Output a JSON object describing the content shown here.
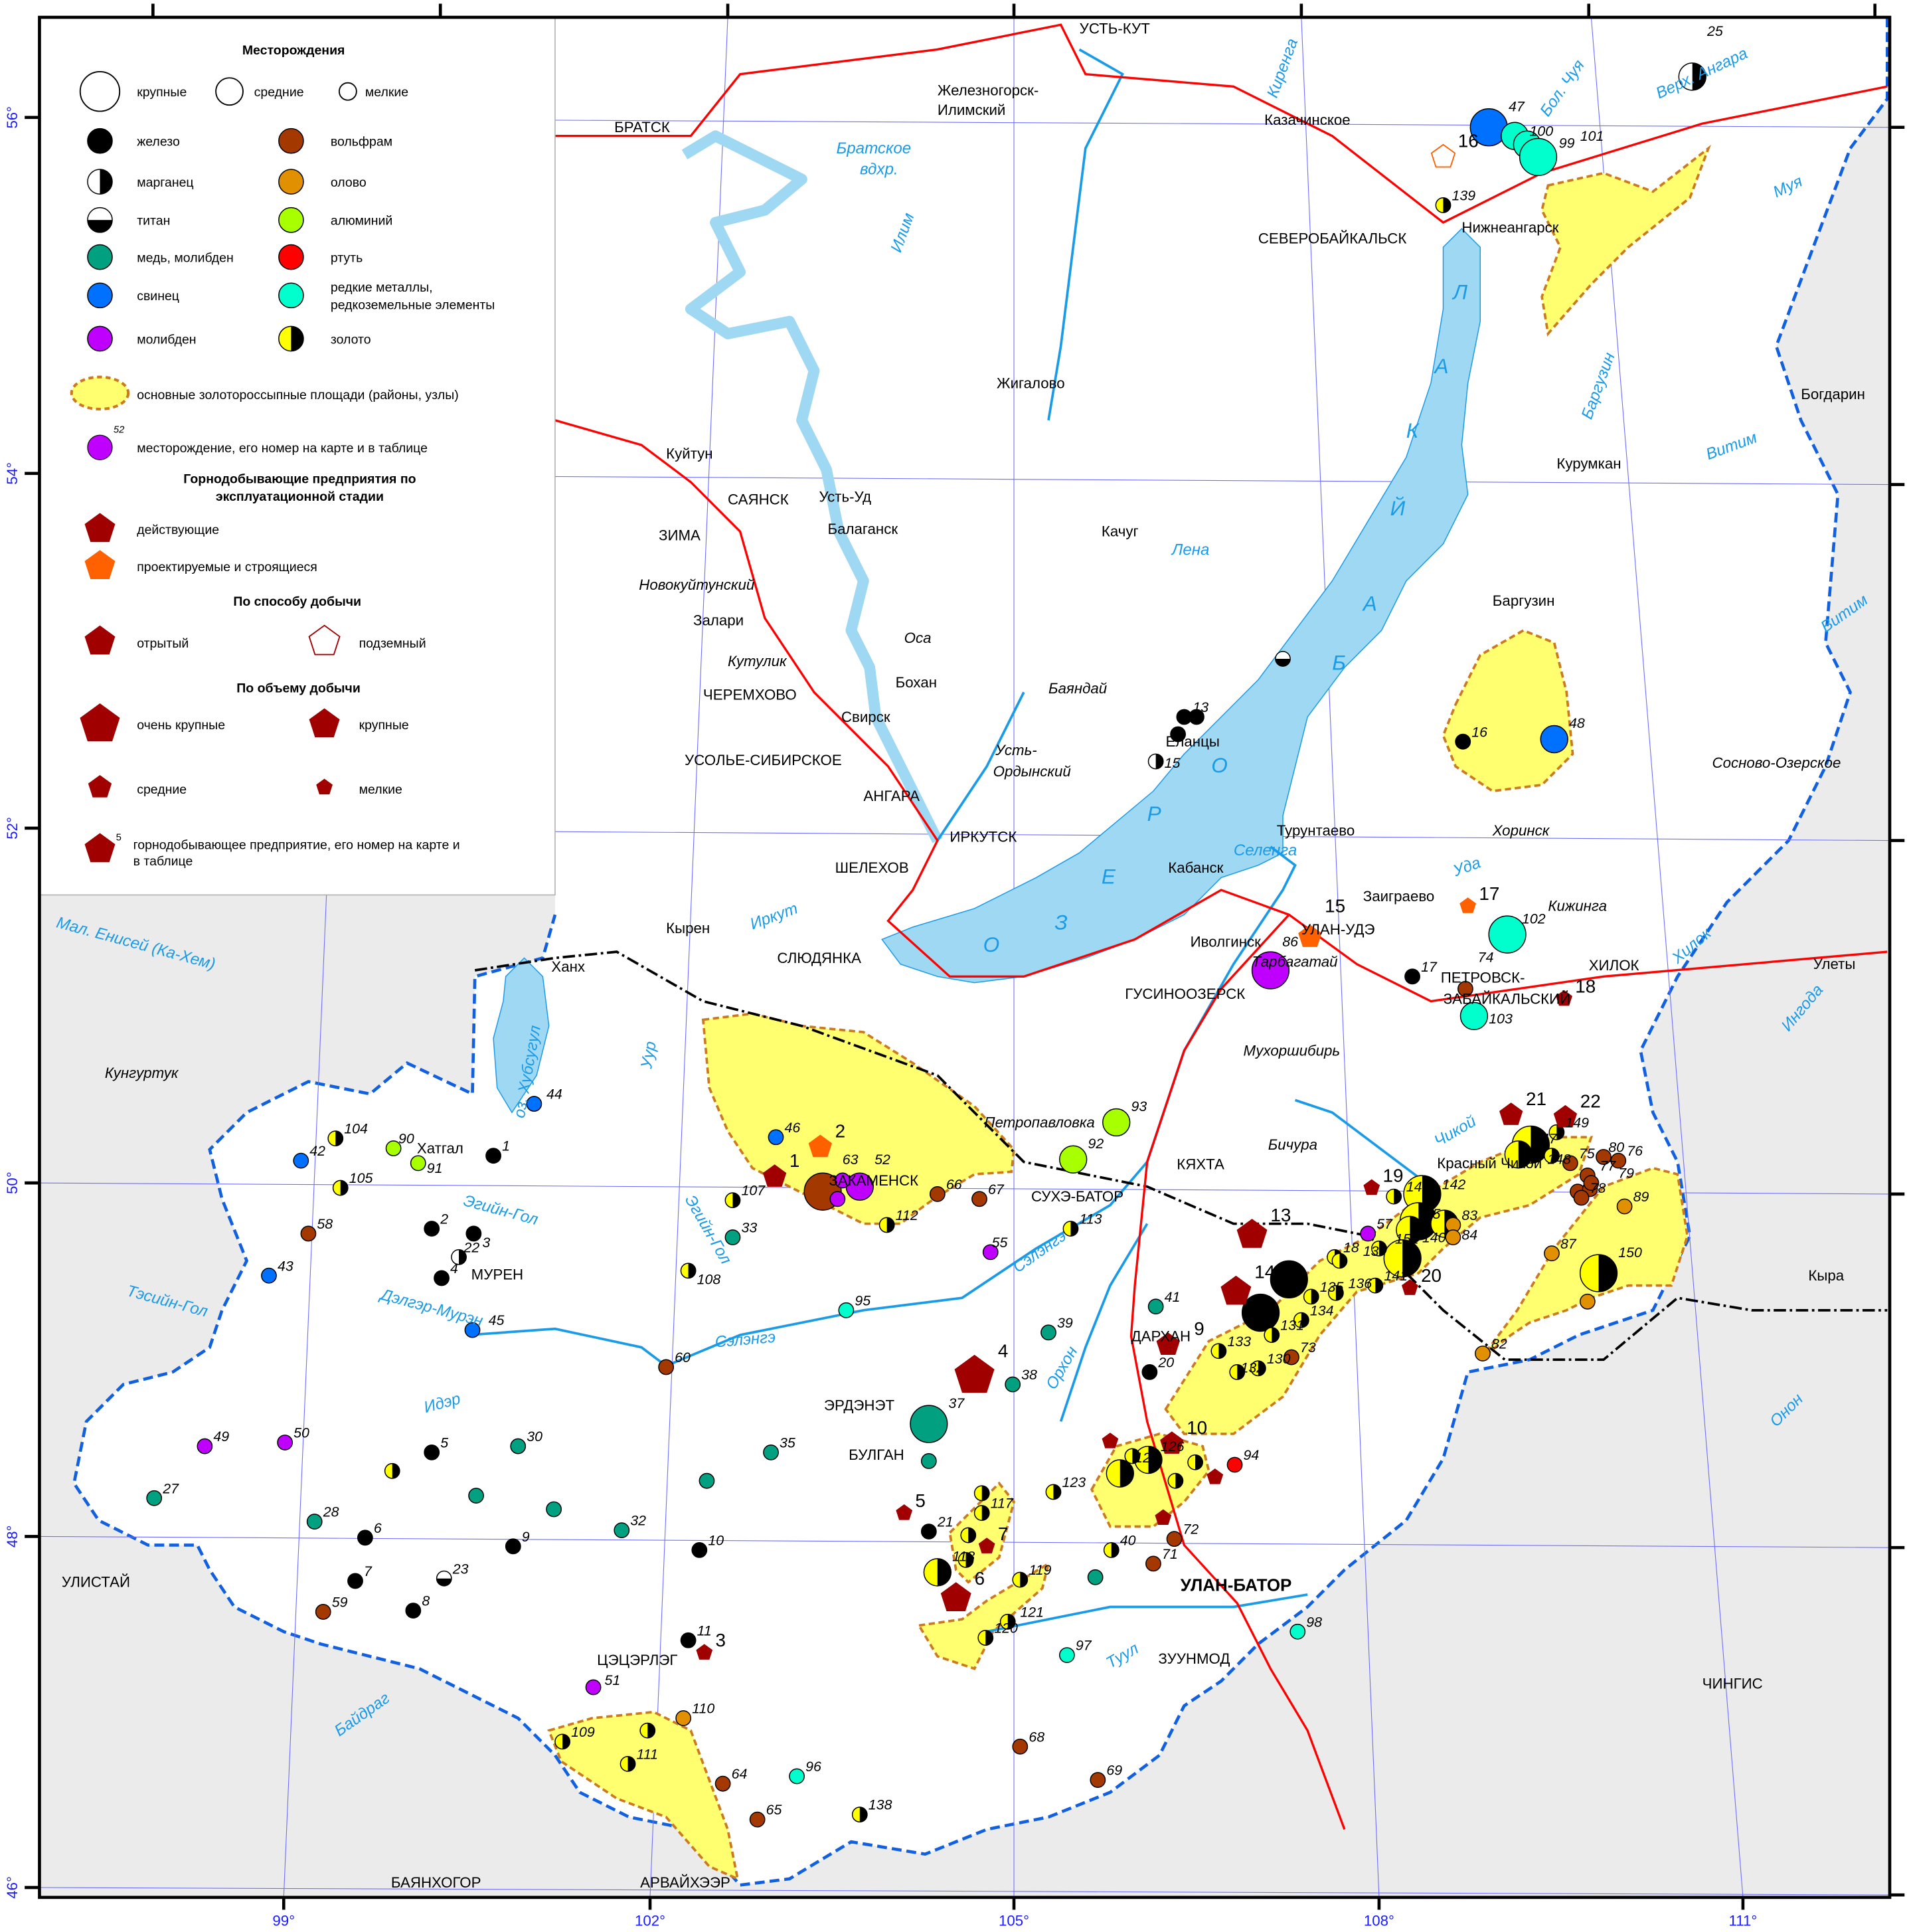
{
  "legend": {
    "deposits_title": "Месторождения",
    "sizes": [
      "крупные",
      "средние",
      "мелкие"
    ],
    "types": [
      {
        "key": "fe",
        "label": "железо",
        "color": "#000000"
      },
      {
        "key": "mn",
        "label": "марганец",
        "color": "#000000"
      },
      {
        "key": "ti",
        "label": "титан",
        "color": "#000000"
      },
      {
        "key": "cu",
        "label": "медь, молибден",
        "color": "#00a080"
      },
      {
        "key": "pb",
        "label": "свинец",
        "color": "#0070ff"
      },
      {
        "key": "mo",
        "label": "молибден",
        "color": "#c000ff"
      },
      {
        "key": "w",
        "label": "вольфрам",
        "color": "#a33800"
      },
      {
        "key": "sn",
        "label": "олово",
        "color": "#e09000"
      },
      {
        "key": "al",
        "label": "алюминий",
        "color": "#a8ff00"
      },
      {
        "key": "hg",
        "label": "ртуть",
        "color": "#ff0000"
      },
      {
        "key": "rm",
        "label": "редкие металлы,",
        "label2": "редкоземельные элементы",
        "color": "#00ffcc"
      },
      {
        "key": "au",
        "label": "золото",
        "color": "#ffff00"
      }
    ],
    "gold_area": "основные золотороссыпные площади (районы, узлы)",
    "deposit_number_example": "52",
    "deposit_number_label": "месторождение, его номер на карте и в таблице",
    "stage_title_1": "Горнодобывающие предприятия по",
    "stage_title_2": "эксплуатационной стадии",
    "active": "действующие",
    "planned": "проектируемые и строящиеся",
    "method_title": "По способу добычи",
    "open": "отрытый",
    "underground": "подземный",
    "volume_title": "По объему добычи",
    "very_large": "очень крупные",
    "large": "крупные",
    "medium": "средние",
    "small": "мелкие",
    "enterprise_number_example": "5",
    "enterprise_number_label_1": "горнодобывающее предприятие, его номер на карте и",
    "enterprise_number_label_2": "в таблице"
  },
  "colors": {
    "enterprise_active": "#a00000",
    "enterprise_planned": "#ff6000",
    "gold_area_fill": "#ffff70",
    "gold_area_border": "#cc7a20",
    "lake": "#9fd8f2",
    "river": "#1a9be8",
    "railway": "#ff0000",
    "study_boundary": "#1060e0",
    "outside": "#ebebeb"
  },
  "axes": {
    "lat_labels": [
      "56°",
      "54°",
      "52°",
      "50°",
      "48°",
      "46°"
    ],
    "lon_labels": [
      "99°",
      "102°",
      "105°",
      "108°",
      "111°"
    ]
  },
  "lake_letters": [
    "О",
    "З",
    "Е",
    "Р",
    "О",
    "Б",
    "А",
    "Й",
    "К",
    "А",
    "Л"
  ],
  "places": [
    {
      "name": "УСТЬ-КУТ",
      "style": "pl"
    },
    {
      "name": "Железногорск-",
      "style": "pl"
    },
    {
      "name": "Илимский",
      "style": "pl"
    },
    {
      "name": "БРАТСК",
      "style": "pl"
    },
    {
      "name": "Казачинское",
      "style": "pl"
    },
    {
      "name": "СЕВЕРОБАЙКАЛЬСК",
      "style": "pl"
    },
    {
      "name": "Нижнеангарск",
      "style": "pl"
    },
    {
      "name": "Жигалово",
      "style": "pl"
    },
    {
      "name": "Богдарин",
      "style": "pl"
    },
    {
      "name": "Куйтун",
      "style": "pl"
    },
    {
      "name": "Курумкан",
      "style": "pl"
    },
    {
      "name": "САЯНСК",
      "style": "pl"
    },
    {
      "name": "Усть-Уд",
      "style": "pl"
    },
    {
      "name": "Балаганск",
      "style": "pl"
    },
    {
      "name": "ЗИМА",
      "style": "pl"
    },
    {
      "name": "Качуг",
      "style": "pl"
    },
    {
      "name": "Новокуйтунский",
      "style": "pli"
    },
    {
      "name": "Баргузин",
      "style": "pl"
    },
    {
      "name": "Залари",
      "style": "pl"
    },
    {
      "name": "Оса",
      "style": "pli"
    },
    {
      "name": "Кутулик",
      "style": "pli"
    },
    {
      "name": "Бохан",
      "style": "pl"
    },
    {
      "name": "ЧЕРЕМХОВО",
      "style": "pl"
    },
    {
      "name": "Баяндай",
      "style": "pli"
    },
    {
      "name": "Свирск",
      "style": "pl"
    },
    {
      "name": "Еланцы",
      "style": "pl"
    },
    {
      "name": "Усть-",
      "style": "pli"
    },
    {
      "name": "Ордынский",
      "style": "pli"
    },
    {
      "name": "УСОЛЬЕ-СИБИРСКОЕ",
      "style": "pl"
    },
    {
      "name": "Сосново-Озерское",
      "style": "pli"
    },
    {
      "name": "АНГАРА",
      "style": "pl"
    },
    {
      "name": "Турунтаево",
      "style": "pl"
    },
    {
      "name": "Хоринск",
      "style": "pli"
    },
    {
      "name": "ИРКУТСК",
      "style": "pl"
    },
    {
      "name": "Кабанск",
      "style": "pl"
    },
    {
      "name": "ШЕЛЕХОВ",
      "style": "pl"
    },
    {
      "name": "Заиграево",
      "style": "pl"
    },
    {
      "name": "Кижинга",
      "style": "pli"
    },
    {
      "name": "УЛАН-УДЭ",
      "style": "pl"
    },
    {
      "name": "Кырен",
      "style": "pl"
    },
    {
      "name": "СЛЮДЯНКА",
      "style": "pl"
    },
    {
      "name": "Иволгинск",
      "style": "pl"
    },
    {
      "name": "Тарбагатай",
      "style": "pli"
    },
    {
      "name": "ХИЛОК",
      "style": "pl"
    },
    {
      "name": "Улеты",
      "style": "pl"
    },
    {
      "name": "Ханх",
      "style": "pl"
    },
    {
      "name": "ПЕТРОВСК-",
      "style": "pl"
    },
    {
      "name": "ЗАБАЙКАЛЬСКИЙ",
      "style": "pl"
    },
    {
      "name": "ГУСИНООЗЕРСК",
      "style": "pl"
    },
    {
      "name": "Мухоршибирь",
      "style": "pli"
    },
    {
      "name": "Кунгуртук",
      "style": "pli"
    },
    {
      "name": "Бичура",
      "style": "pli"
    },
    {
      "name": "Петропавловка",
      "style": "pli"
    },
    {
      "name": "КЯХТА",
      "style": "pl"
    },
    {
      "name": "Красный Чикой",
      "style": "pl"
    },
    {
      "name": "СУХЭ-БАТОР",
      "style": "pl"
    },
    {
      "name": "ЗАКАМЕНСК",
      "style": "pl"
    },
    {
      "name": "Хатгал",
      "style": "pl"
    },
    {
      "name": "МУРЕН",
      "style": "pl"
    },
    {
      "name": "ДАРХАН",
      "style": "pl"
    },
    {
      "name": "Кыра",
      "style": "pl"
    },
    {
      "name": "ЭРДЭНЭТ",
      "style": "pl"
    },
    {
      "name": "БУЛГАН",
      "style": "pl"
    },
    {
      "name": "УЛИСТАЙ",
      "style": "pl"
    },
    {
      "name": "УЛАН-БАТОР",
      "style": "plb"
    },
    {
      "name": "ЗУУНМОД",
      "style": "pl"
    },
    {
      "name": "ЦЭЦЭРЛЭГ",
      "style": "pl"
    },
    {
      "name": "ЧИНГИС",
      "style": "pl"
    },
    {
      "name": "БАЯНХОГОР",
      "style": "pl"
    },
    {
      "name": "АРВАЙХЭЭР",
      "style": "pl"
    }
  ],
  "rivers": [
    "Братское",
    "вдхр.",
    "Илим",
    "Киренга",
    "Бол. Чуя",
    "Верх. Ангара",
    "Муя",
    "Баргузин",
    "Витим",
    "Лена",
    "Витим",
    "Селенга",
    "Уда",
    "Иркут",
    "Хилок",
    "Ингода",
    "Мал. Енисей (Ка-Хем)",
    "оз. Хубсугул",
    "Уур",
    "Чикой",
    "Эгийн-Гол",
    "Эгийн-Гол",
    "Тэсийн-Гол",
    "Дэлгэр-Мурэн",
    "Сэлэнгэ",
    "Сэлэнгэ",
    "Идэр",
    "Орхон",
    "Туул",
    "Байдраг",
    "Онон"
  ],
  "deposits": [
    {
      "n": "25",
      "type": "mn",
      "size": "m"
    },
    {
      "n": "47",
      "type": "pb",
      "size": "l"
    },
    {
      "n": "100",
      "type": "rm",
      "size": "m"
    },
    {
      "n": "99",
      "type": "rm",
      "size": "m"
    },
    {
      "n": "101",
      "type": "rm",
      "size": "l"
    },
    {
      "n": "139",
      "type": "au",
      "size": "s"
    },
    {
      "n": "",
      "type": "ti",
      "size": "s"
    },
    {
      "n": "13",
      "type": "fe",
      "size": "s"
    },
    {
      "n": "",
      "type": "fe",
      "size": "s"
    },
    {
      "n": "",
      "type": "fe",
      "size": "s"
    },
    {
      "n": "15",
      "type": "mn",
      "size": "s"
    },
    {
      "n": "16",
      "type": "fe",
      "size": "s"
    },
    {
      "n": "48",
      "type": "pb",
      "size": "m"
    },
    {
      "n": "102",
      "type": "rm",
      "size": "l"
    },
    {
      "n": "86",
      "type": "mo",
      "size": "l"
    },
    {
      "n": "17",
      "type": "fe",
      "size": "s"
    },
    {
      "n": "74",
      "type": "w",
      "size": "s"
    },
    {
      "n": "103",
      "type": "rm",
      "size": "m"
    },
    {
      "n": "93",
      "type": "al",
      "size": "m"
    },
    {
      "n": "92",
      "type": "al",
      "size": "m"
    },
    {
      "n": "46",
      "type": "pb",
      "size": "s"
    },
    {
      "n": "63",
      "type": "w",
      "size": "l"
    },
    {
      "n": "52",
      "type": "mo",
      "size": "m"
    },
    {
      "n": "",
      "type": "mo",
      "size": "s"
    },
    {
      "n": "",
      "type": "mo",
      "size": "s"
    },
    {
      "n": "112",
      "type": "au",
      "size": "s"
    },
    {
      "n": "66",
      "type": "w",
      "size": "s"
    },
    {
      "n": "67",
      "type": "w",
      "size": "s"
    },
    {
      "n": "107",
      "type": "au",
      "size": "s"
    },
    {
      "n": "33",
      "type": "cu",
      "size": "s"
    },
    {
      "n": "108",
      "type": "au",
      "size": "s"
    },
    {
      "n": "113",
      "type": "au",
      "size": "s"
    },
    {
      "n": "55",
      "type": "mo",
      "size": "s"
    },
    {
      "n": "95",
      "type": "rm",
      "size": "s"
    },
    {
      "n": "41",
      "type": "cu",
      "size": "s"
    },
    {
      "n": "39",
      "type": "cu",
      "size": "s"
    },
    {
      "n": "38",
      "type": "cu",
      "size": "s"
    },
    {
      "n": "20",
      "type": "fe",
      "size": "s"
    },
    {
      "n": "37",
      "type": "cu",
      "size": "l"
    },
    {
      "n": "",
      "type": "cu",
      "size": "s"
    },
    {
      "n": "44",
      "type": "pb",
      "size": "s"
    },
    {
      "n": "42",
      "type": "pb",
      "size": "s"
    },
    {
      "n": "104",
      "type": "au",
      "size": "s"
    },
    {
      "n": "90",
      "type": "al",
      "size": "s"
    },
    {
      "n": "91",
      "type": "al",
      "size": "s"
    },
    {
      "n": "1",
      "type": "fe",
      "size": "s"
    },
    {
      "n": "105",
      "type": "au",
      "size": "s"
    },
    {
      "n": "58",
      "type": "w",
      "size": "s"
    },
    {
      "n": "43",
      "type": "pb",
      "size": "s"
    },
    {
      "n": "2",
      "type": "fe",
      "size": "s"
    },
    {
      "n": "3",
      "type": "fe",
      "size": "s"
    },
    {
      "n": "22",
      "type": "mn",
      "size": "s"
    },
    {
      "n": "4",
      "type": "fe",
      "size": "s"
    },
    {
      "n": "45",
      "type": "pb",
      "size": "s"
    },
    {
      "n": "60",
      "type": "w",
      "size": "s"
    },
    {
      "n": "35",
      "type": "cu",
      "size": "s"
    },
    {
      "n": "30",
      "type": "cu",
      "size": "s"
    },
    {
      "n": "5",
      "type": "fe",
      "size": "s"
    },
    {
      "n": "49",
      "type": "mo",
      "size": "s"
    },
    {
      "n": "50",
      "type": "mo",
      "size": "s"
    },
    {
      "n": "27",
      "type": "cu",
      "size": "s"
    },
    {
      "n": "28",
      "type": "cu",
      "size": "s"
    },
    {
      "n": "",
      "type": "au",
      "size": "s"
    },
    {
      "n": "",
      "type": "cu",
      "size": "s"
    },
    {
      "n": "",
      "type": "cu",
      "size": "s"
    },
    {
      "n": "6",
      "type": "fe",
      "size": "s"
    },
    {
      "n": "9",
      "type": "fe",
      "size": "s"
    },
    {
      "n": "32",
      "type": "cu",
      "size": "s"
    },
    {
      "n": "10",
      "type": "fe",
      "size": "s"
    },
    {
      "n": "7",
      "type": "fe",
      "size": "s"
    },
    {
      "n": "23",
      "type": "ti",
      "size": "s"
    },
    {
      "n": "59",
      "type": "w",
      "size": "s"
    },
    {
      "n": "8",
      "type": "fe",
      "size": "s"
    },
    {
      "n": "",
      "type": "cu",
      "size": "s"
    },
    {
      "n": "11",
      "type": "fe",
      "size": "s"
    },
    {
      "n": "51",
      "type": "mo",
      "size": "s"
    },
    {
      "n": "110",
      "type": "sn",
      "size": "s"
    },
    {
      "n": "109",
      "type": "au",
      "size": "s"
    },
    {
      "n": "",
      "type": "au",
      "size": "s"
    },
    {
      "n": "111",
      "type": "au",
      "size": "s"
    },
    {
      "n": "64",
      "type": "w",
      "size": "s"
    },
    {
      "n": "65",
      "type": "w",
      "size": "s"
    },
    {
      "n": "96",
      "type": "rm",
      "size": "s"
    },
    {
      "n": "138",
      "type": "au",
      "size": "s"
    },
    {
      "n": "68",
      "type": "w",
      "size": "s"
    },
    {
      "n": "69",
      "type": "w",
      "size": "s"
    },
    {
      "n": "97",
      "type": "rm",
      "size": "s"
    },
    {
      "n": "120",
      "type": "au",
      "size": "s"
    },
    {
      "n": "121",
      "type": "au",
      "size": "s"
    },
    {
      "n": "119",
      "type": "au",
      "size": "s"
    },
    {
      "n": "118",
      "type": "au",
      "size": "m"
    },
    {
      "n": "",
      "type": "au",
      "size": "s"
    },
    {
      "n": "21",
      "type": "fe",
      "size": "s"
    },
    {
      "n": "117",
      "type": "au",
      "size": "s"
    },
    {
      "n": "",
      "type": "au",
      "size": "s"
    },
    {
      "n": "",
      "type": "au",
      "size": "s"
    },
    {
      "n": "123",
      "type": "au",
      "size": "s"
    },
    {
      "n": "125",
      "type": "au",
      "size": "m"
    },
    {
      "n": "126",
      "type": "au",
      "size": "m"
    },
    {
      "n": "",
      "type": "au",
      "size": "s"
    },
    {
      "n": "",
      "type": "au",
      "size": "s"
    },
    {
      "n": "",
      "type": "au",
      "size": "s"
    },
    {
      "n": "94",
      "type": "hg",
      "size": "s"
    },
    {
      "n": "72",
      "type": "w",
      "size": "s"
    },
    {
      "n": "71",
      "type": "w",
      "size": "s"
    },
    {
      "n": "40",
      "type": "au",
      "size": "s"
    },
    {
      "n": "",
      "type": "cu",
      "size": "s"
    },
    {
      "n": "98",
      "type": "rm",
      "size": "s"
    },
    {
      "n": "",
      "type": "fe",
      "size": "l"
    },
    {
      "n": "",
      "type": "fe",
      "size": "l"
    },
    {
      "n": "18",
      "type": "au",
      "size": "s"
    },
    {
      "n": "57",
      "type": "mo",
      "size": "s"
    },
    {
      "n": "142",
      "type": "au",
      "size": "l"
    },
    {
      "n": "",
      "type": "au",
      "size": "l"
    },
    {
      "n": "85",
      "type": "au",
      "size": "m"
    },
    {
      "n": "",
      "type": "au",
      "size": "m"
    },
    {
      "n": "83",
      "type": "sn",
      "size": "s"
    },
    {
      "n": "84",
      "type": "sn",
      "size": "s"
    },
    {
      "n": "140",
      "type": "au",
      "size": "l"
    },
    {
      "n": "135",
      "type": "au",
      "size": "s"
    },
    {
      "n": "134",
      "type": "au",
      "size": "s"
    },
    {
      "n": "131",
      "type": "au",
      "size": "s"
    },
    {
      "n": "133",
      "type": "au",
      "size": "s"
    },
    {
      "n": "73",
      "type": "w",
      "size": "s"
    },
    {
      "n": "130",
      "type": "au",
      "size": "s"
    },
    {
      "n": "",
      "type": "au",
      "size": "l"
    },
    {
      "n": "147",
      "type": "au",
      "size": "m"
    },
    {
      "n": "75",
      "type": "w",
      "size": "s"
    },
    {
      "n": "76",
      "type": "w",
      "size": "s"
    },
    {
      "n": "77",
      "type": "w",
      "size": "s"
    },
    {
      "n": "",
      "type": "w",
      "size": "s"
    },
    {
      "n": "",
      "type": "w",
      "size": "s"
    },
    {
      "n": "78",
      "type": "w",
      "size": "s"
    },
    {
      "n": "89",
      "type": "sn",
      "size": "s"
    },
    {
      "n": "87",
      "type": "sn",
      "size": "s"
    },
    {
      "n": "150",
      "type": "au",
      "size": "l"
    },
    {
      "n": "",
      "type": "sn",
      "size": "s"
    },
    {
      "n": "82",
      "type": "sn",
      "size": "s"
    },
    {
      "n": "132",
      "type": "au",
      "size": "s"
    },
    {
      "n": "136",
      "type": "au",
      "size": "s"
    },
    {
      "n": "141",
      "type": "au",
      "size": "s"
    },
    {
      "n": "137",
      "type": "au",
      "size": "s"
    },
    {
      "n": "151",
      "type": "au",
      "size": "s"
    },
    {
      "n": "149",
      "type": "au",
      "size": "s"
    },
    {
      "n": "148",
      "type": "au",
      "size": "s"
    },
    {
      "n": "80",
      "type": "w",
      "size": "s"
    },
    {
      "n": "79",
      "type": "w",
      "size": "s"
    },
    {
      "n": "143",
      "type": "au",
      "size": "s"
    }
  ],
  "enterprises": [
    {
      "n": "1",
      "status": "active",
      "method": "open",
      "size": "m"
    },
    {
      "n": "2",
      "status": "planned",
      "method": "open",
      "size": "m"
    },
    {
      "n": "3",
      "status": "active",
      "method": "open",
      "size": "s"
    },
    {
      "n": "4",
      "status": "active",
      "method": "open",
      "size": "vl"
    },
    {
      "n": "5",
      "status": "active",
      "method": "open",
      "size": "s"
    },
    {
      "n": "6",
      "status": "active",
      "method": "open",
      "size": "l"
    },
    {
      "n": "7",
      "status": "active",
      "method": "open",
      "size": "s"
    },
    {
      "n": "9",
      "status": "active",
      "method": "open",
      "size": "m"
    },
    {
      "n": "10",
      "status": "active",
      "method": "open",
      "size": "m"
    },
    {
      "n": "",
      "status": "active",
      "method": "open",
      "size": "s"
    },
    {
      "n": "",
      "status": "active",
      "method": "open",
      "size": "s"
    },
    {
      "n": "",
      "status": "active",
      "method": "open",
      "size": "s"
    },
    {
      "n": "13",
      "status": "active",
      "method": "open",
      "size": "l"
    },
    {
      "n": "14",
      "status": "active",
      "method": "open",
      "size": "l"
    },
    {
      "n": "15",
      "status": "planned",
      "method": "open",
      "size": "m"
    },
    {
      "n": "16",
      "status": "planned",
      "method": "underground",
      "size": "m"
    },
    {
      "n": "17",
      "status": "planned",
      "method": "open",
      "size": "s"
    },
    {
      "n": "18",
      "status": "active",
      "method": "open",
      "size": "s"
    },
    {
      "n": "19",
      "status": "active",
      "method": "open",
      "size": "s"
    },
    {
      "n": "20",
      "status": "active",
      "method": "open",
      "size": "s"
    },
    {
      "n": "21",
      "status": "active",
      "method": "open",
      "size": "m"
    },
    {
      "n": "22",
      "status": "active",
      "method": "open",
      "size": "m"
    }
  ]
}
